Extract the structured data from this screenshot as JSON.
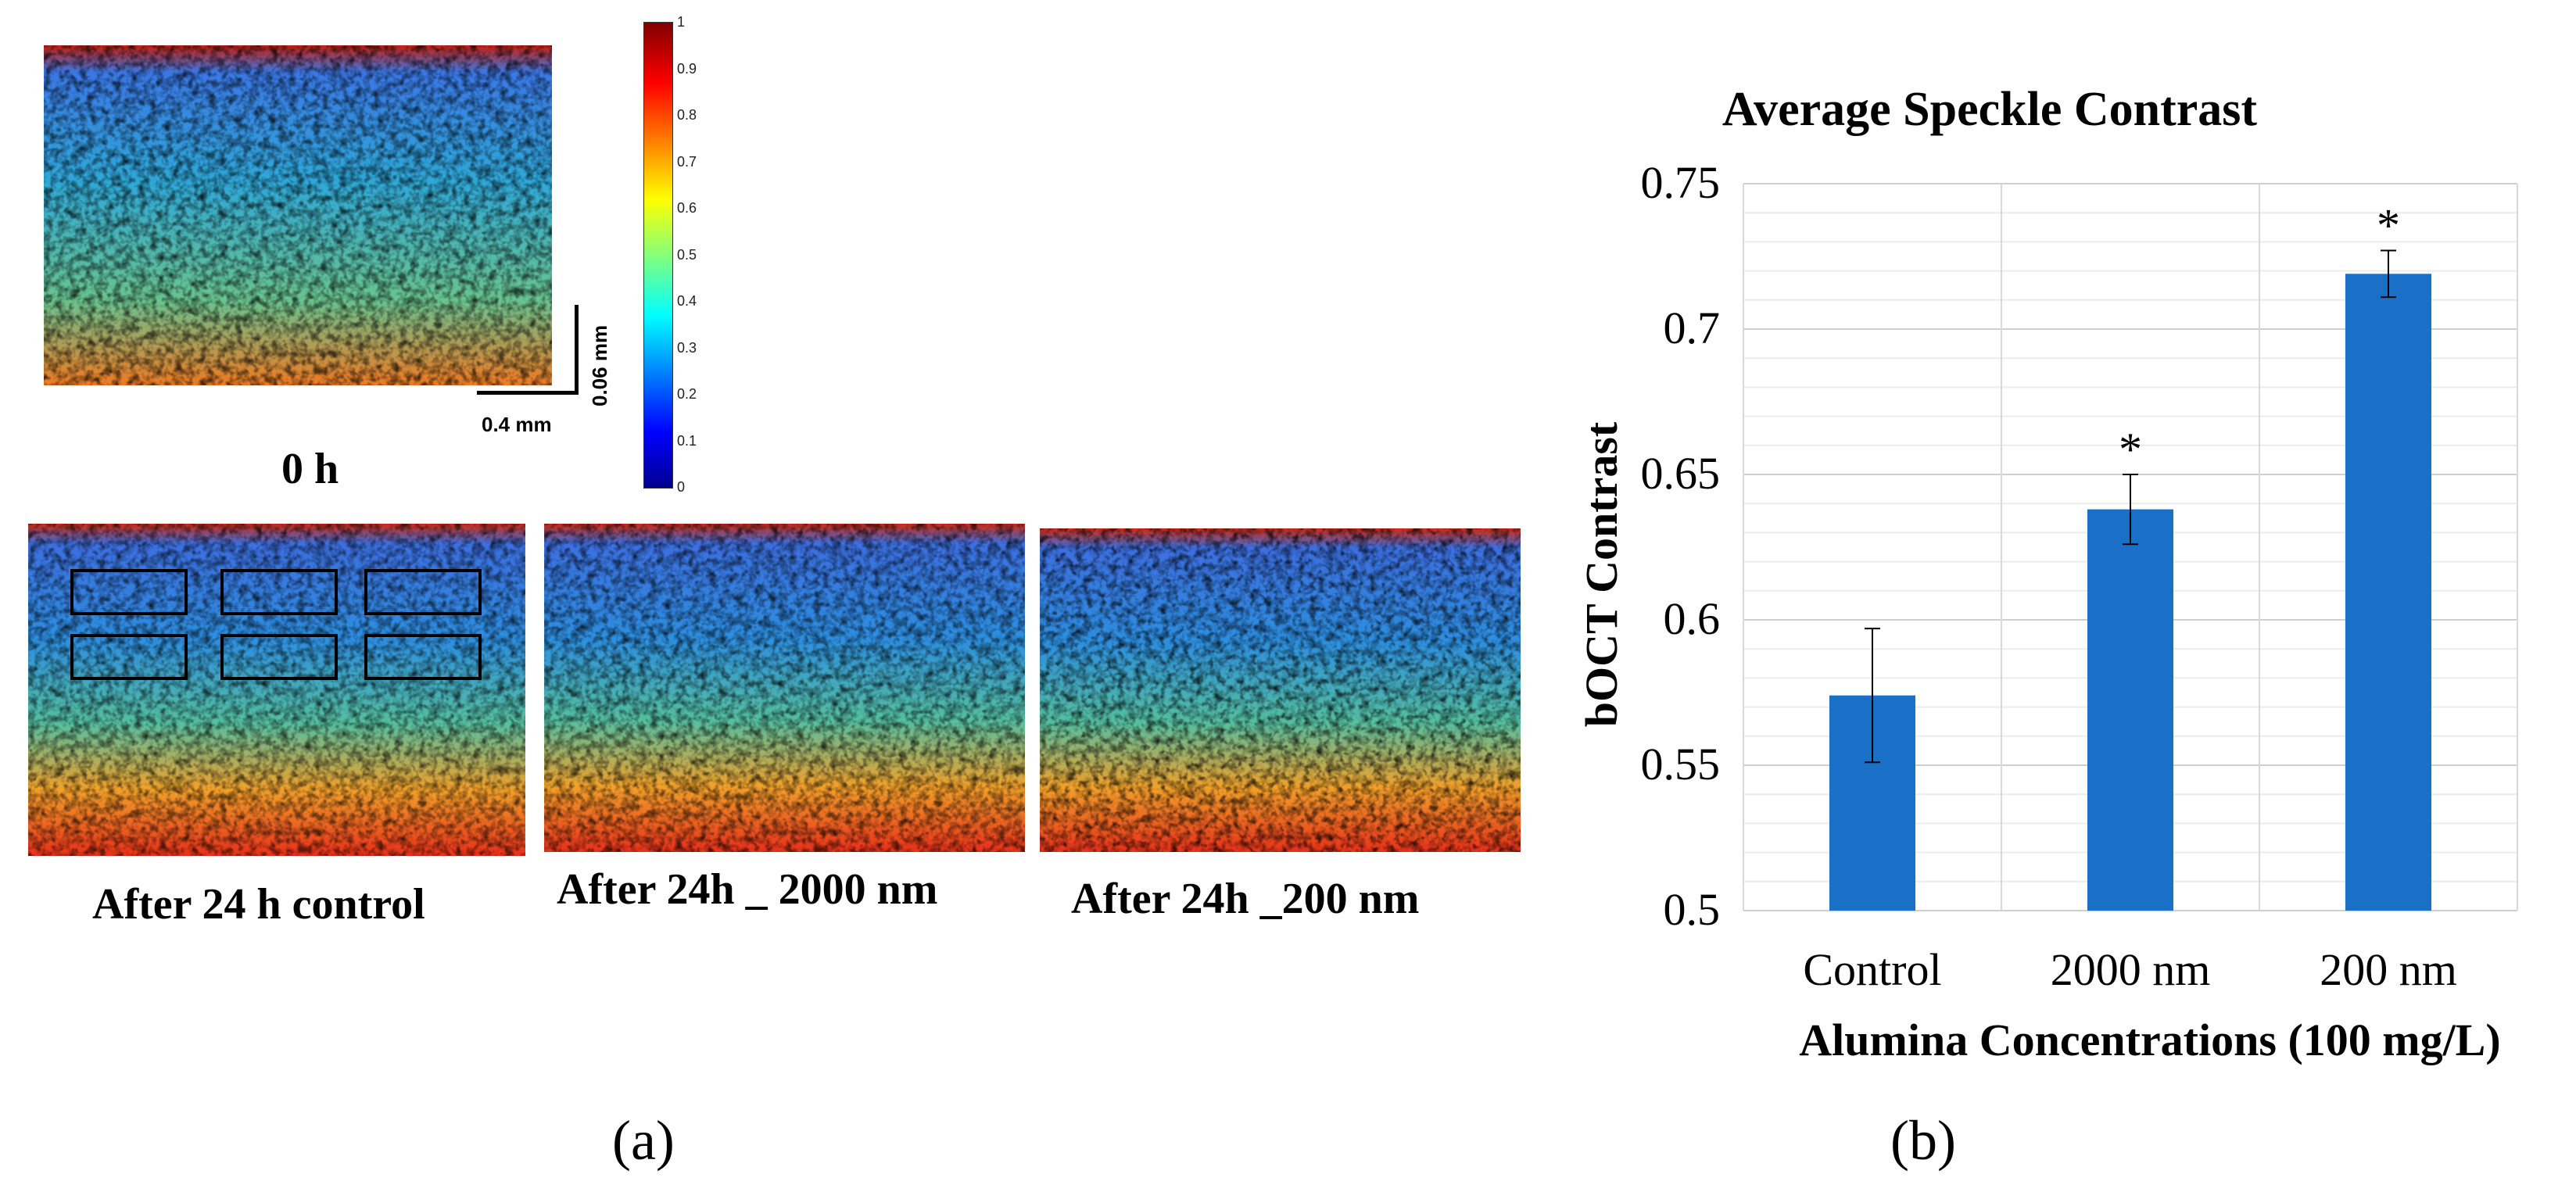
{
  "panel_a": {
    "label": "(a)",
    "images": [
      {
        "caption": "0 h"
      },
      {
        "caption": "After 24 h control"
      },
      {
        "caption": "After 24h _ 2000 nm"
      },
      {
        "caption": "After 24h _200 nm"
      }
    ],
    "scale_bar": {
      "horizontal": "0.4 mm",
      "vertical": "0.06 mm"
    },
    "colorbar": {
      "ticks": [
        "1",
        "0.9",
        "0.8",
        "0.7",
        "0.6",
        "0.5",
        "0.4",
        "0.3",
        "0.2",
        "0.1",
        "0"
      ]
    }
  },
  "panel_b": {
    "label": "(b)"
  },
  "chart_data": {
    "type": "bar",
    "title": "Average Speckle Contrast",
    "xlabel": "Alumina Concentrations (100 mg/L)",
    "ylabel": "bOCT Contrast",
    "categories": [
      "Control",
      "2000 nm",
      "200 nm"
    ],
    "values": [
      0.574,
      0.638,
      0.719
    ],
    "errors": [
      0.023,
      0.012,
      0.008
    ],
    "significance": [
      "",
      "*",
      "*"
    ],
    "ylim": [
      0.5,
      0.75
    ],
    "yticks": [
      "0.75",
      "0.7",
      "0.65",
      "0.6",
      "0.55",
      "0.5"
    ],
    "bar_color": "#1a6fc6",
    "grid": true
  }
}
